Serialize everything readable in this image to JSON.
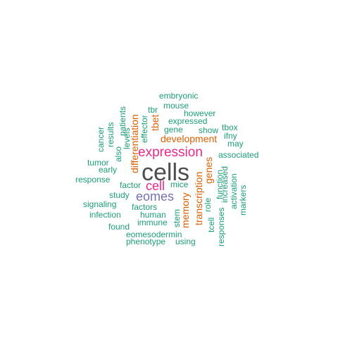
{
  "colors": {
    "gray": "#4d4d4d",
    "magenta": "#e7298a",
    "orange": "#d95f02",
    "purple": "#7570b3",
    "teal": "#1b9e77"
  },
  "words": [
    {
      "text": "cells",
      "color": "#4d4d4d",
      "size": 34
    },
    {
      "text": "expression",
      "color": "#e7298a",
      "size": 19
    },
    {
      "text": "cell",
      "color": "#e7298a",
      "size": 18
    },
    {
      "text": "eomes",
      "color": "#7570b3",
      "size": 18
    },
    {
      "text": "development",
      "color": "#d95f02",
      "size": 14
    },
    {
      "text": "differentiation",
      "color": "#d95f02",
      "size": 14
    },
    {
      "text": "transcription",
      "color": "#d95f02",
      "size": 14
    },
    {
      "text": "memory",
      "color": "#d95f02",
      "size": 14
    },
    {
      "text": "genes",
      "color": "#d95f02",
      "size": 14
    },
    {
      "text": "tbet",
      "color": "#d95f02",
      "size": 14
    },
    {
      "text": "embryonic",
      "color": "#1b9e77",
      "size": 12
    },
    {
      "text": "mouse",
      "color": "#1b9e77",
      "size": 12
    },
    {
      "text": "however",
      "color": "#1b9e77",
      "size": 12
    },
    {
      "text": "expressed",
      "color": "#1b9e77",
      "size": 12
    },
    {
      "text": "gene",
      "color": "#1b9e77",
      "size": 12
    },
    {
      "text": "show",
      "color": "#1b9e77",
      "size": 12
    },
    {
      "text": "tbox",
      "color": "#1b9e77",
      "size": 12
    },
    {
      "text": "ifny",
      "color": "#1b9e77",
      "size": 12
    },
    {
      "text": "may",
      "color": "#1b9e77",
      "size": 12
    },
    {
      "text": "associated",
      "color": "#1b9e77",
      "size": 12
    },
    {
      "text": "tbr",
      "color": "#1b9e77",
      "size": 12
    },
    {
      "text": "effector",
      "color": "#1b9e77",
      "size": 12
    },
    {
      "text": "patients",
      "color": "#1b9e77",
      "size": 12
    },
    {
      "text": "levels",
      "color": "#1b9e77",
      "size": 12
    },
    {
      "text": "results",
      "color": "#1b9e77",
      "size": 12
    },
    {
      "text": "also",
      "color": "#1b9e77",
      "size": 12
    },
    {
      "text": "cancer",
      "color": "#1b9e77",
      "size": 12
    },
    {
      "text": "tumor",
      "color": "#1b9e77",
      "size": 12
    },
    {
      "text": "early",
      "color": "#1b9e77",
      "size": 12
    },
    {
      "text": "response",
      "color": "#1b9e77",
      "size": 12
    },
    {
      "text": "factor",
      "color": "#1b9e77",
      "size": 12
    },
    {
      "text": "mice",
      "color": "#1b9e77",
      "size": 12
    },
    {
      "text": "study",
      "color": "#1b9e77",
      "size": 12
    },
    {
      "text": "signaling",
      "color": "#1b9e77",
      "size": 12
    },
    {
      "text": "factors",
      "color": "#1b9e77",
      "size": 12
    },
    {
      "text": "infection",
      "color": "#1b9e77",
      "size": 12
    },
    {
      "text": "human",
      "color": "#1b9e77",
      "size": 12
    },
    {
      "text": "immune",
      "color": "#1b9e77",
      "size": 12
    },
    {
      "text": "found",
      "color": "#1b9e77",
      "size": 12
    },
    {
      "text": "eomesodermin",
      "color": "#1b9e77",
      "size": 12
    },
    {
      "text": "phenotype",
      "color": "#1b9e77",
      "size": 12
    },
    {
      "text": "using",
      "color": "#1b9e77",
      "size": 12
    },
    {
      "text": "stem",
      "color": "#1b9e77",
      "size": 12
    },
    {
      "text": "role",
      "color": "#1b9e77",
      "size": 12
    },
    {
      "text": "tcell",
      "color": "#1b9e77",
      "size": 12
    },
    {
      "text": "function",
      "color": "#1b9e77",
      "size": 12
    },
    {
      "text": "increased",
      "color": "#1b9e77",
      "size": 12
    },
    {
      "text": "activation",
      "color": "#1b9e77",
      "size": 12
    },
    {
      "text": "markers",
      "color": "#1b9e77",
      "size": 12
    },
    {
      "text": "responses",
      "color": "#1b9e77",
      "size": 12
    }
  ]
}
